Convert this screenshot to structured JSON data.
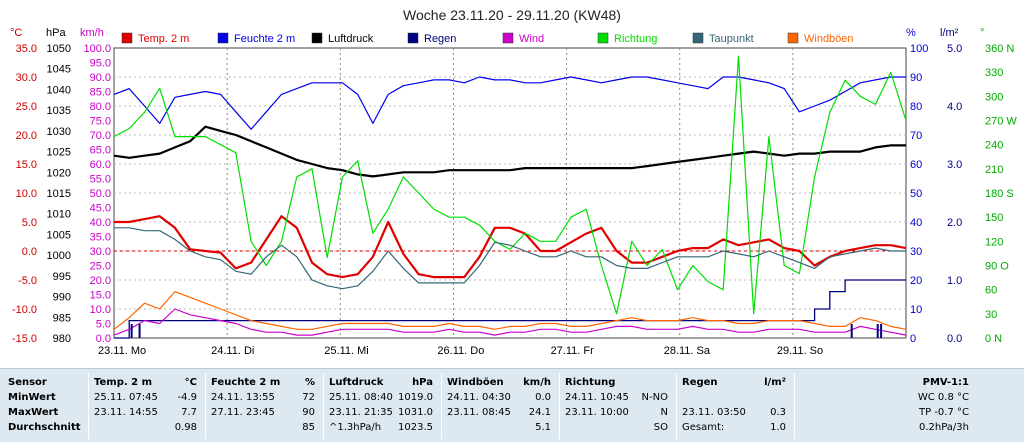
{
  "chart_data": {
    "type": "line",
    "title": "Woche 23.11.20 - 29.11.20 (KW48)",
    "x_ticks": [
      "23.11. Mo",
      "24.11. Di",
      "25.11. Mi",
      "26.11. Do",
      "27.11. Fr",
      "28.11. Sa",
      "29.11. So"
    ],
    "axes": {
      "temp_c": {
        "unit": "°C",
        "range": [
          -15,
          35
        ],
        "ticks": [
          "35.0",
          "30.0",
          "25.0",
          "20.0",
          "15.0",
          "10.0",
          "5.0",
          "0.0",
          "-5.0",
          "-10.0",
          "-15.0"
        ],
        "color": "#cc0000"
      },
      "pressure_hpa": {
        "unit": "hPa",
        "range": [
          980,
          1050
        ],
        "ticks": [
          "1050",
          "1045",
          "1040",
          "1035",
          "1030",
          "1025",
          "1020",
          "1015",
          "1010",
          "1005",
          "1000",
          "995",
          "990",
          "985",
          "980"
        ],
        "color": "#000000"
      },
      "wind_kmh": {
        "unit": "km/h",
        "range": [
          0,
          100
        ],
        "ticks": [
          "100.0",
          "95.0",
          "90.0",
          "85.0",
          "80.0",
          "75.0",
          "70.0",
          "65.0",
          "60.0",
          "55.0",
          "50.0",
          "45.0",
          "40.0",
          "35.0",
          "30.0",
          "25.0",
          "20.0",
          "15.0",
          "10.0",
          "5.0",
          "0.0"
        ],
        "color": "#cc00cc"
      },
      "humidity_pct": {
        "unit": "%",
        "range": [
          0,
          100
        ],
        "ticks": [
          "100",
          "90",
          "80",
          "70",
          "60",
          "50",
          "40",
          "30",
          "20",
          "10",
          "0"
        ],
        "color": "#0000cc"
      },
      "rain_lm2": {
        "unit": "l/m²",
        "range": [
          0,
          5
        ],
        "ticks": [
          "5.0",
          "4.0",
          "3.0",
          "2.0",
          "1.0",
          "0.0"
        ],
        "color": "#000080"
      },
      "direction_deg": {
        "unit": "°",
        "range": [
          0,
          360
        ],
        "ticks": [
          "360 N",
          "330",
          "300",
          "270 W",
          "240",
          "210",
          "180 S",
          "150",
          "120",
          "90 O",
          "60",
          "30",
          "0 N"
        ],
        "color": "#00aa00"
      }
    },
    "series": [
      {
        "name": "Temp. 2 m",
        "color": "#e00000",
        "axis": "temp_c",
        "values": [
          5,
          5,
          5.5,
          6,
          4,
          0.3,
          0,
          -0.3,
          -3,
          -2,
          2,
          6,
          4,
          -2,
          -4,
          -4.5,
          -4,
          -1,
          5,
          -0.5,
          -4,
          -4.5,
          -4.5,
          -4.5,
          -1,
          4,
          4,
          3,
          0,
          0,
          1.5,
          3,
          4,
          0,
          -2,
          -2,
          -1,
          0,
          0.5,
          0.5,
          2,
          1,
          1.5,
          2,
          0.5,
          0,
          -2.5,
          -1,
          0,
          0.5,
          1,
          1,
          0.5
        ]
      },
      {
        "name": "Feuchte 2 m",
        "color": "#0000ee",
        "axis": "humidity_pct",
        "values": [
          84,
          86,
          80,
          74,
          83,
          84,
          85,
          84,
          78,
          72,
          78,
          84,
          86,
          88,
          88,
          88,
          84,
          74,
          84,
          87,
          88,
          89,
          89,
          88,
          90,
          89,
          89,
          88,
          88,
          89,
          90,
          89,
          88,
          89,
          90,
          90,
          89,
          88,
          87,
          86,
          90,
          90,
          89,
          88,
          86,
          78,
          80,
          82,
          85,
          88,
          89,
          90,
          90
        ]
      },
      {
        "name": "Luftdruck",
        "color": "#000000",
        "axis": "pressure_hpa",
        "values": [
          1024,
          1023.5,
          1024,
          1024.5,
          1026,
          1027.5,
          1031,
          1030,
          1029,
          1027.5,
          1026,
          1024.5,
          1023,
          1022,
          1021,
          1020.5,
          1019.5,
          1019,
          1019.5,
          1020,
          1020,
          1020,
          1020.5,
          1020.5,
          1020.5,
          1020.5,
          1020.5,
          1021,
          1021,
          1021,
          1021,
          1021,
          1021,
          1021,
          1021,
          1021.5,
          1022,
          1022.5,
          1023,
          1023.5,
          1024,
          1024.5,
          1025,
          1024.5,
          1024,
          1024.5,
          1024.5,
          1025,
          1025,
          1025,
          1026,
          1026.5,
          1026.5
        ]
      },
      {
        "name": "Regen",
        "color": "#000080",
        "axis": "rain_lm2",
        "values": [
          0,
          0.3,
          0.3,
          0.3,
          0.3,
          0.3,
          0.3,
          0.3,
          0.3,
          0.3,
          0.3,
          0.3,
          0.3,
          0.3,
          0.3,
          0.3,
          0.3,
          0.3,
          0.3,
          0.3,
          0.3,
          0.3,
          0.3,
          0.3,
          0.3,
          0.3,
          0.3,
          0.3,
          0.3,
          0.3,
          0.3,
          0.3,
          0.3,
          0.3,
          0.3,
          0.3,
          0.3,
          0.3,
          0.3,
          0.3,
          0.3,
          0.3,
          0.3,
          0.3,
          0.3,
          0.3,
          0.5,
          0.8,
          1.0,
          1.0,
          1.0,
          1.0,
          1.0
        ]
      },
      {
        "name": "Wind",
        "color": "#cc00cc",
        "axis": "wind_kmh",
        "values": [
          1,
          3,
          6,
          5,
          10,
          8,
          7,
          6,
          5,
          3,
          2,
          2,
          1,
          1,
          2,
          3,
          3,
          3,
          3,
          2,
          2,
          2,
          3,
          2,
          2,
          1,
          2,
          2,
          3,
          3,
          2,
          2,
          3,
          4,
          4,
          3,
          3,
          3,
          4,
          3,
          3,
          2,
          2,
          3,
          3,
          3,
          2,
          2,
          2,
          4,
          3,
          2,
          1
        ]
      },
      {
        "name": "Richtung",
        "color": "#00dd00",
        "axis": "direction_deg",
        "values": [
          250,
          260,
          280,
          310,
          250,
          250,
          250,
          240,
          230,
          120,
          90,
          120,
          200,
          210,
          100,
          200,
          220,
          130,
          160,
          200,
          180,
          160,
          150,
          150,
          140,
          120,
          110,
          130,
          120,
          120,
          150,
          160,
          90,
          30,
          120,
          90,
          110,
          60,
          90,
          70,
          60,
          350,
          30,
          250,
          90,
          80,
          200,
          280,
          320,
          300,
          290,
          330,
          270
        ]
      },
      {
        "name": "Taupunkt",
        "color": "#336677",
        "axis": "temp_c",
        "values": [
          4,
          4,
          3.5,
          3.5,
          2,
          0,
          -1,
          -1.5,
          -3.5,
          -4,
          -1,
          1,
          -1,
          -5,
          -6,
          -6.5,
          -6,
          -3.5,
          0,
          -3,
          -5.5,
          -5.5,
          -5.5,
          -5.5,
          -2.5,
          1.5,
          1,
          0,
          -1,
          -1,
          0,
          -1,
          -1,
          -2.5,
          -3,
          -3,
          -2,
          -1,
          -1,
          -1,
          0,
          -0.5,
          -1,
          0,
          -1,
          -2,
          -3,
          -1,
          -0.5,
          0,
          0.5,
          0,
          0
        ]
      },
      {
        "name": "Windböen",
        "color": "#ff6600",
        "axis": "wind_kmh",
        "values": [
          3,
          7,
          12,
          10,
          16,
          14,
          12,
          10,
          8,
          6,
          5,
          4,
          3,
          3,
          4,
          5,
          5,
          5,
          5,
          4,
          4,
          4,
          5,
          4,
          4,
          3,
          4,
          4,
          5,
          5,
          4,
          4,
          5,
          6,
          7,
          6,
          6,
          6,
          7,
          6,
          6,
          5,
          5,
          6,
          6,
          6,
          5,
          4,
          4,
          7,
          6,
          4,
          3
        ]
      }
    ],
    "legend_position": "top",
    "grid": true
  },
  "table": {
    "rows_labels": [
      "Sensor",
      "MinWert",
      "MaxWert",
      "Durchschnitt"
    ],
    "temp": {
      "title": "Temp. 2 m",
      "unit": "°C",
      "min_time": "25.11.  07:45",
      "min_val": "-4.9",
      "max_time": "23.11.  14:55",
      "max_val": "7.7",
      "avg": "0.98"
    },
    "humidity": {
      "title": "Feuchte  2 m",
      "unit": "%",
      "min_time": "24.11.  13:55",
      "min_val": "72",
      "max_time": "27.11.  23:45",
      "max_val": "90",
      "avg": "85"
    },
    "pressure": {
      "title": "Luftdruck",
      "unit": "hPa",
      "min_time": "25.11.  08:40",
      "min_val": "1019.0",
      "max_time": "23.11.  21:35",
      "max_val": "1031.0",
      "avg_label": "^1.3hPa/h",
      "avg": "1023.5"
    },
    "gusts": {
      "title": "Windböen",
      "unit": "km/h",
      "min_time": "24.11.  04:30",
      "min_val": "0.0",
      "max_time": "23.11.  08:45",
      "max_val": "24.1",
      "avg": "5.1"
    },
    "direction": {
      "title": "Richtung",
      "min_time": "24.11.  10:45",
      "min_val": "N-NO",
      "max_time": "23.11.  10:00",
      "max_val": "N",
      "avg": "SO"
    },
    "rain": {
      "title": "Regen",
      "unit": "l/m²",
      "max_time": "23.11.  03:50",
      "max_val": "0.3",
      "avg_label": "Gesamt:",
      "avg": "1.0"
    },
    "pmv": {
      "title": "PMV-1:1",
      "min_val": "WC 0.8 °C",
      "max_val": "TP -0.7 °C",
      "avg": "0.2hPa/3h"
    }
  }
}
